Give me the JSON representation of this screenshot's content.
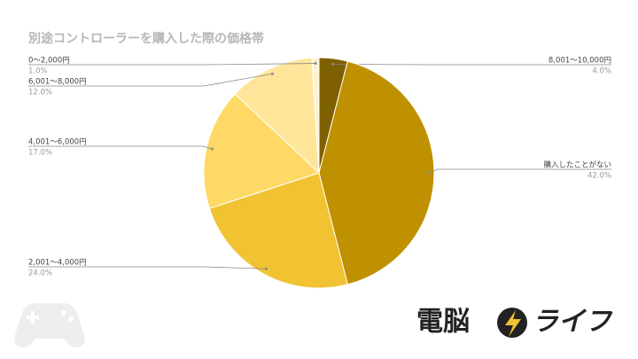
{
  "chart_data": {
    "type": "pie",
    "title": "別途コントローラーを購入した際の価格帯",
    "categories": [
      "8,001～10,000円",
      "購入したことがない",
      "2,001～4,000円",
      "4,001～6,000円",
      "6,001～8,000円",
      "0～2,000円"
    ],
    "values": [
      4,
      42,
      24,
      17,
      12,
      1
    ],
    "value_labels": [
      "4.0%",
      "42.0%",
      "24.0%",
      "17.0%",
      "12.0%",
      "1.0%"
    ],
    "colors": [
      "#7f6000",
      "#bf9000",
      "#f1c232",
      "#ffd966",
      "#ffe599",
      "#fff2cc"
    ]
  },
  "logo": {
    "left": "電脳",
    "right": "ライフ"
  }
}
